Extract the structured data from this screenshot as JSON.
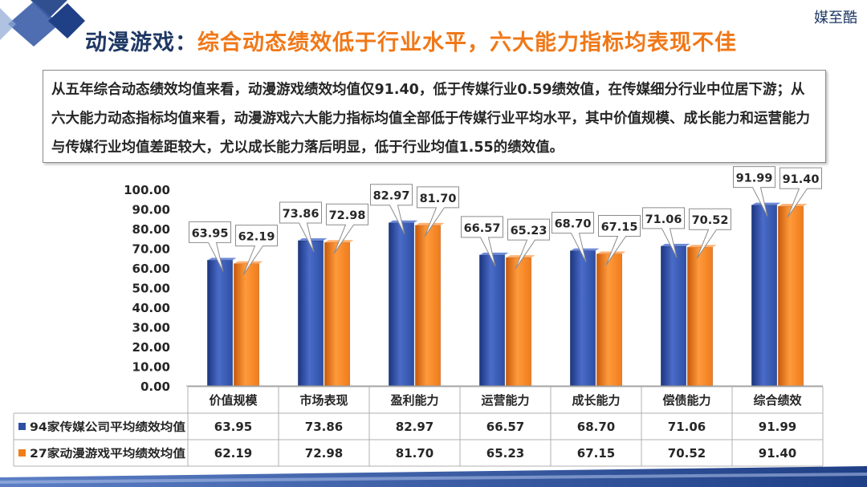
{
  "header": {
    "title_prefix": "动漫游戏：",
    "title_main": "综合动态绩效低于行业水平，六大能力指标均表现不佳",
    "brand": "媒至酷"
  },
  "summary": {
    "text": "从五年综合动态绩效均值来看，动漫游戏绩效均值仅91.40，低于传媒行业0.59绩效值，在传媒细分行业中位居下游；从六大能力动态指标均值来看，动漫游戏六大能力指标均值全部低于传媒行业平均水平，其中价值规模、成长能力和运营能力与传媒行业均值差距较大，尤以成长能力落后明显，低于行业均值1.55的绩效值。"
  },
  "chart_data": {
    "type": "bar",
    "categories": [
      "价值规模",
      "市场表现",
      "盈利能力",
      "运营能力",
      "成长能力",
      "偿债能力",
      "综合绩效"
    ],
    "series": [
      {
        "name": "94家传媒公司平均绩效均值",
        "values": [
          63.95,
          73.86,
          82.97,
          66.57,
          68.7,
          71.06,
          91.99
        ],
        "color": "#2e4fa3"
      },
      {
        "name": "27家动漫游戏平均绩效均值",
        "values": [
          62.19,
          72.98,
          81.7,
          65.23,
          67.15,
          70.52,
          91.4
        ],
        "color": "#f07c1c"
      }
    ],
    "yticks": [
      "100.00",
      "90.00",
      "80.00",
      "70.00",
      "60.00",
      "50.00",
      "40.00",
      "30.00",
      "20.00",
      "10.00",
      "0.00"
    ],
    "ylim": [
      0,
      100
    ],
    "data_labels": [
      [
        "63.95",
        "73.86",
        "82.97",
        "66.57",
        "68.70",
        "71.06",
        "91.99"
      ],
      [
        "62.19",
        "72.98",
        "81.70",
        "65.23",
        "67.15",
        "70.52",
        "91.40"
      ]
    ],
    "legend": "data-table-below",
    "grid": false
  }
}
